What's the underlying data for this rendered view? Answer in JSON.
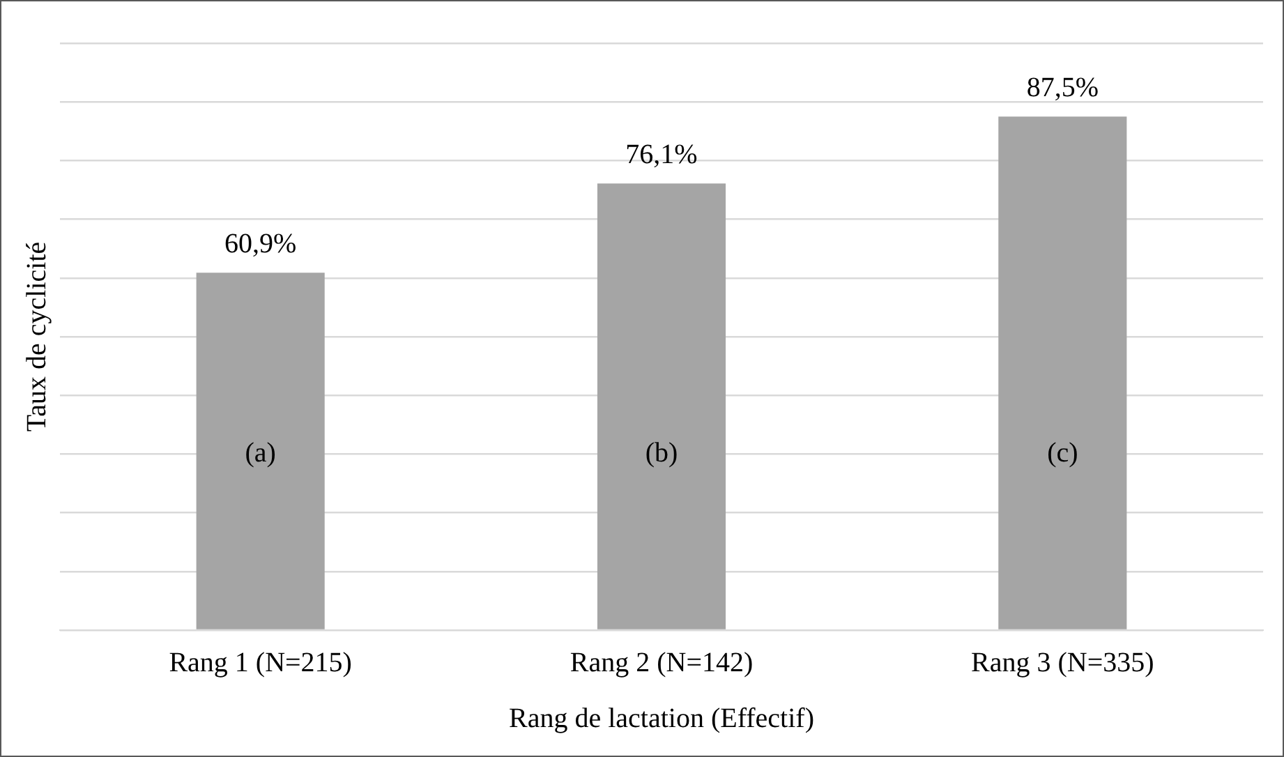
{
  "chart_data": {
    "type": "bar",
    "xlabel": "Rang de lactation (Effectif)",
    "ylabel": "Taux de cyclicité",
    "categories": [
      "Rang 1 (N=215)",
      "Rang 2 (N=142)",
      "Rang 3 (N=335)"
    ],
    "values": [
      60.9,
      76.1,
      87.5
    ],
    "color": "#a5a5a5",
    "value_labels": [
      "60,9%",
      "76,1%",
      "87,5%"
    ],
    "ylim": [
      0,
      100
    ],
    "yticks": [
      {
        "value": 0,
        "label": null
      },
      {
        "value": 10,
        "label": null
      },
      {
        "value": 20,
        "label": null
      },
      {
        "value": 30,
        "label": null
      },
      {
        "value": 40,
        "label": null
      },
      {
        "value": 50,
        "label": null
      },
      {
        "value": 60,
        "label": null
      },
      {
        "value": 70,
        "label": null
      },
      {
        "value": 80,
        "label": null
      },
      {
        "value": 90,
        "label": null
      },
      {
        "value": 100,
        "label": null
      }
    ],
    "annotations": [
      "(a)",
      "(b)",
      "(c)"
    ],
    "grid": "y",
    "legend": false,
    "tick_labels": "x"
  }
}
